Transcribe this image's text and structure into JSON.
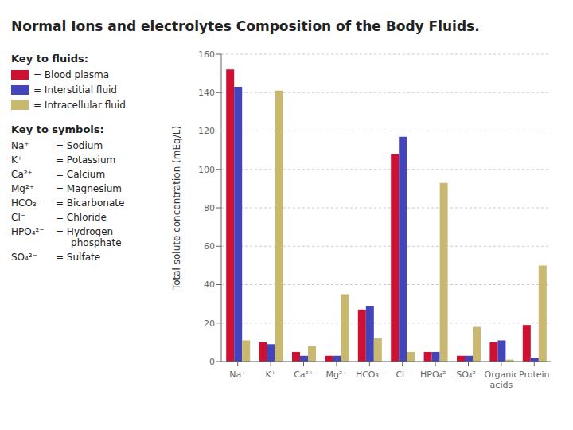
{
  "chart_data": {
    "type": "bar",
    "title": "Normal Ions and electrolytes Composition of the Body Fluids.",
    "ylabel": "Total solute concentration (mEq/L)",
    "categories": [
      "Na⁺",
      "K⁺",
      "Ca²⁺",
      "Mg²⁺",
      "HCO₃⁻",
      "Cl⁻",
      "HPO₄²⁻",
      "SO₄²⁻",
      "Organic\nacids",
      "Protein"
    ],
    "series": [
      {
        "name": "= Blood plasma",
        "color": "#cc1133",
        "values": [
          152,
          10,
          5,
          3,
          27,
          108,
          5,
          3,
          10,
          19
        ]
      },
      {
        "name": "= Interstitial fluid",
        "color": "#4444bb",
        "values": [
          143,
          9,
          3,
          3,
          29,
          117,
          5,
          3,
          11,
          2
        ]
      },
      {
        "name": "= Intracellular fluid",
        "color": "#c8b870",
        "values": [
          11,
          141,
          8,
          35,
          12,
          5,
          93,
          18,
          1,
          50
        ]
      }
    ],
    "ylim": [
      0,
      160
    ],
    "yticks": [
      0,
      20,
      40,
      60,
      80,
      100,
      120,
      140,
      160
    ],
    "grid": true,
    "legend_title": "Key to fluids:",
    "annotations": {
      "title": "Key to symbols:",
      "items": [
        [
          "Na⁺",
          "= Sodium"
        ],
        [
          "K⁺",
          "= Potassium"
        ],
        [
          "Ca²⁺",
          "= Calcium"
        ],
        [
          "Mg²⁺",
          "= Magnesium"
        ],
        [
          "HCO₃⁻",
          "= Bicarbonate"
        ],
        [
          "Cl⁻",
          "= Chloride"
        ],
        [
          "HPO₄²⁻",
          "= Hydrogen\n     phosphate"
        ],
        [
          "SO₄²⁻",
          "= Sulfate"
        ]
      ]
    }
  }
}
